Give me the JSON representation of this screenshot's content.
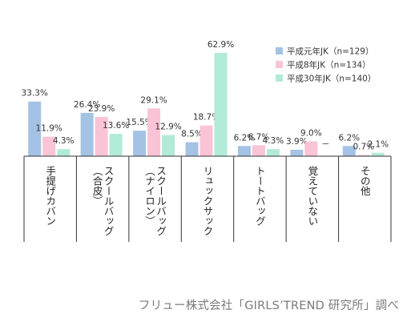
{
  "chart_data": {
    "type": "bar",
    "categories": [
      {
        "lines": [
          "手提げカバン"
        ]
      },
      {
        "lines": [
          "スクールバッグ",
          "（合皮）"
        ]
      },
      {
        "lines": [
          "スクールバッグ",
          "（ナイロン）"
        ]
      },
      {
        "lines": [
          "リュックサック"
        ]
      },
      {
        "lines": [
          "トートバッグ"
        ]
      },
      {
        "lines": [
          "覚えていない"
        ]
      },
      {
        "lines": [
          "その他"
        ]
      }
    ],
    "series": [
      {
        "name": "平成元年JK（n=129）",
        "color": "#a4c2e4",
        "values": [
          33.3,
          26.4,
          15.5,
          8.5,
          6.2,
          3.9,
          6.2
        ],
        "labels": [
          "33.3%",
          "26.4%",
          "15.5%",
          "8.5%",
          "6.2%",
          "3.9%",
          "6.2%"
        ]
      },
      {
        "name": "平成8年JK（n=134）",
        "color": "#f9c4d6",
        "values": [
          11.9,
          23.9,
          29.1,
          18.7,
          6.7,
          9.0,
          0.7
        ],
        "labels": [
          "11.9%",
          "23.9%",
          "29.1%",
          "18.7%",
          "6.7%",
          "9.0%",
          "0.7%"
        ]
      },
      {
        "name": "平成30年JK（n=140）",
        "color": "#b2ead8",
        "values": [
          4.3,
          13.6,
          12.9,
          62.9,
          4.3,
          null,
          2.1
        ],
        "labels": [
          "4.3%",
          "13.6%",
          "12.9%",
          "62.9%",
          "4.3%",
          "－",
          "2.1%"
        ]
      }
    ],
    "ylim": [
      0,
      70
    ],
    "grid": false,
    "legend": "top-right"
  },
  "credit": "フリュー株式会社「GIRLS’TREND 研究所」調べ"
}
